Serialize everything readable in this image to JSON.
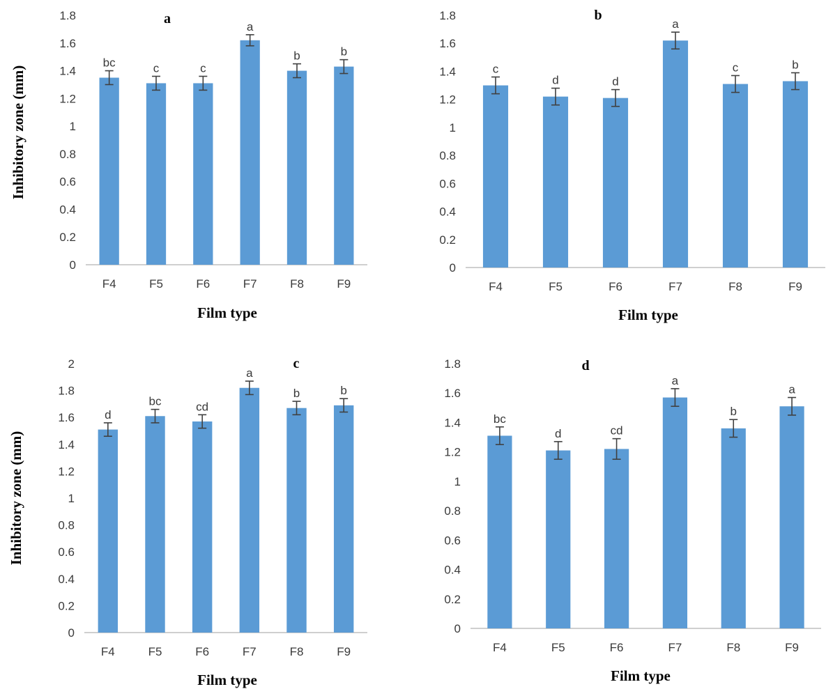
{
  "chart_data": [
    {
      "type": "bar",
      "title": "a",
      "xlabel": "Film type",
      "ylabel": "Inhibitory  zone (mm)",
      "categories": [
        "F4",
        "F5",
        "F6",
        "F7",
        "F8",
        "F9"
      ],
      "values": [
        1.35,
        1.31,
        1.31,
        1.62,
        1.4,
        1.43
      ],
      "errors": [
        0.05,
        0.05,
        0.05,
        0.04,
        0.05,
        0.05
      ],
      "labels": [
        "bc",
        "c",
        "c",
        "a",
        "b",
        "b"
      ],
      "ylim": [
        0,
        1.8
      ],
      "yticks": [
        "0",
        "0.2",
        "0.4",
        "0.6",
        "0.8",
        "1",
        "1.2",
        "1.4",
        "1.6",
        "1.8"
      ],
      "color": "#5b9bd5",
      "grid": false
    },
    {
      "type": "bar",
      "title": "b",
      "xlabel": "Film type",
      "ylabel": "",
      "categories": [
        "F4",
        "F5",
        "F6",
        "F7",
        "F8",
        "F9"
      ],
      "values": [
        1.3,
        1.22,
        1.21,
        1.62,
        1.31,
        1.33
      ],
      "errors": [
        0.06,
        0.06,
        0.06,
        0.06,
        0.06,
        0.06
      ],
      "labels": [
        "c",
        "d",
        "d",
        "a",
        "c",
        "b"
      ],
      "ylim": [
        0,
        1.8
      ],
      "yticks": [
        "0",
        "0.2",
        "0.4",
        "0.6",
        "0.8",
        "1",
        "1.2",
        "1.4",
        "1.6",
        "1.8"
      ],
      "color": "#5b9bd5",
      "grid": false
    },
    {
      "type": "bar",
      "title": "c",
      "xlabel": "Film type",
      "ylabel": "Inhibitory  zone (mm)",
      "categories": [
        "F4",
        "F5",
        "F6",
        "F7",
        "F8",
        "F9"
      ],
      "values": [
        1.51,
        1.61,
        1.57,
        1.82,
        1.67,
        1.69
      ],
      "errors": [
        0.05,
        0.05,
        0.05,
        0.05,
        0.05,
        0.05
      ],
      "labels": [
        "d",
        "bc",
        "cd",
        "a",
        "b",
        "b"
      ],
      "ylim": [
        0,
        2
      ],
      "yticks": [
        "0",
        "0.2",
        "0.4",
        "0.6",
        "0.8",
        "1",
        "1.2",
        "1.4",
        "1.6",
        "1.8",
        "2"
      ],
      "color": "#5b9bd5",
      "grid": false
    },
    {
      "type": "bar",
      "title": "d",
      "xlabel": "Film type",
      "ylabel": "",
      "categories": [
        "F4",
        "F5",
        "F6",
        "F7",
        "F8",
        "F9"
      ],
      "values": [
        1.31,
        1.21,
        1.22,
        1.57,
        1.36,
        1.51
      ],
      "errors": [
        0.06,
        0.06,
        0.07,
        0.06,
        0.06,
        0.06
      ],
      "labels": [
        "bc",
        "d",
        "cd",
        "a",
        "b",
        "a"
      ],
      "ylim": [
        0,
        1.8
      ],
      "yticks": [
        "0",
        "0.2",
        "0.4",
        "0.6",
        "0.8",
        "1",
        "1.2",
        "1.4",
        "1.6",
        "1.8"
      ],
      "color": "#5b9bd5",
      "grid": false
    }
  ]
}
